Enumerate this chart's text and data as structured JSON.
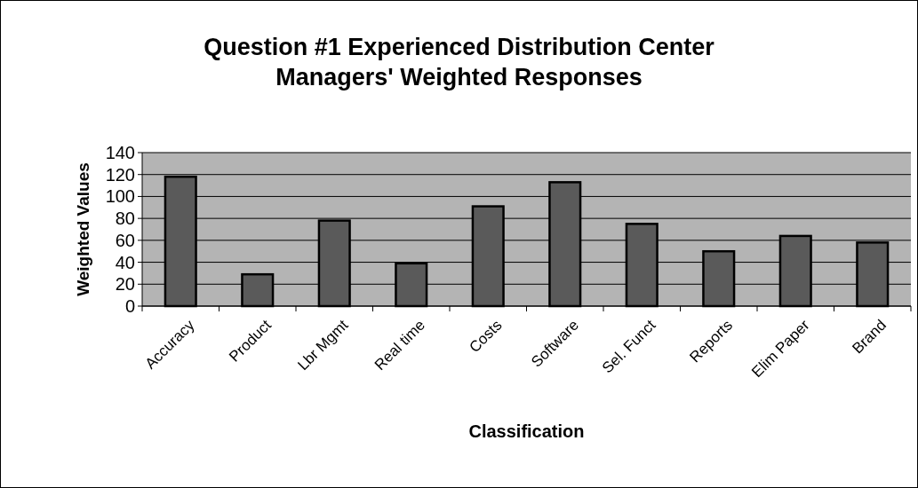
{
  "chart_data": {
    "type": "bar",
    "title": "Question #1 Experienced Distribution Center Managers' Weighted Responses",
    "xlabel": "Classification",
    "ylabel": "Weighted Values",
    "categories": [
      "Accuracy",
      "Product",
      "Lbr Mgmt",
      "Real time",
      "Costs",
      "Software",
      "Sel. Funct",
      "Reports",
      "Elim Paper",
      "Brand"
    ],
    "values": [
      118,
      29,
      78,
      39,
      91,
      113,
      75,
      50,
      64,
      58
    ],
    "color": "#5a5a5a",
    "ylim": [
      0,
      140
    ],
    "yticks": [
      0,
      20,
      40,
      60,
      80,
      100,
      120,
      140
    ],
    "grid": "y"
  }
}
